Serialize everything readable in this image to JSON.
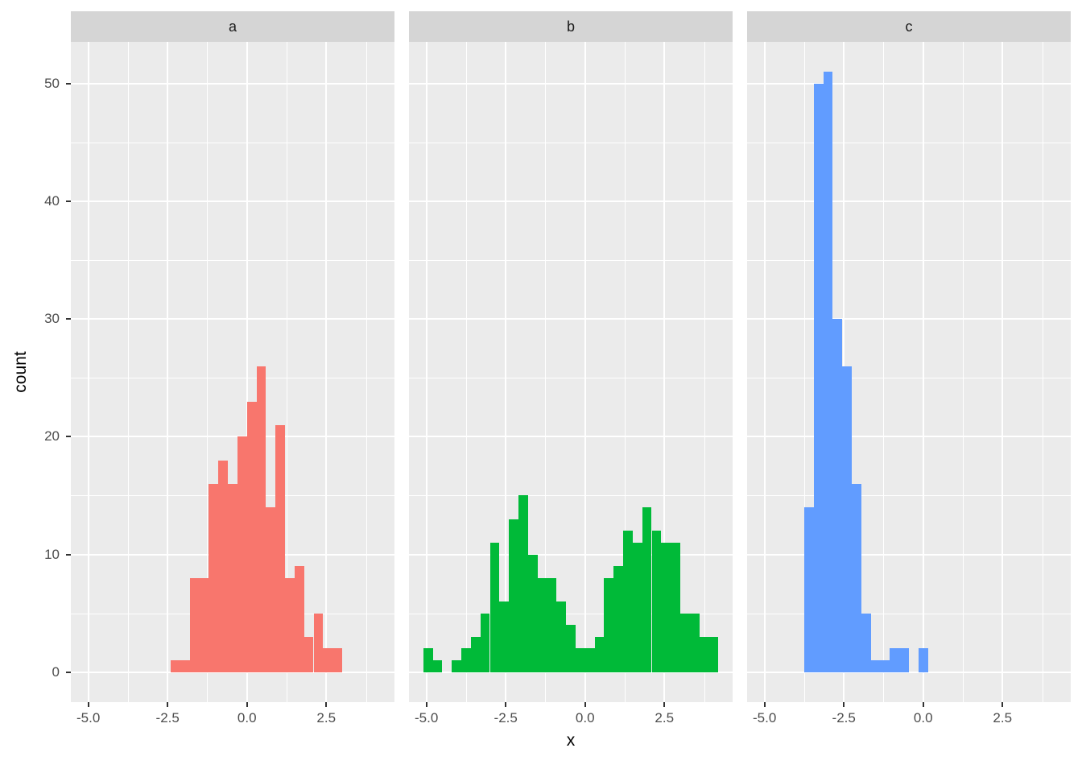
{
  "chart_data": {
    "type": "bar",
    "subtype": "faceted_histogram",
    "title": "",
    "xlabel": "x",
    "ylabel": "count",
    "legend": "none",
    "grid": "on",
    "panel_background": "#EBEBEB",
    "strip_background": "#D5D5D5",
    "grid_color": "#FFFFFF",
    "axis_text_color": "#4D4D4D",
    "tick_color": "#333333",
    "x_domain": [
      -5.55,
      4.65
    ],
    "y_domain": [
      -2.55,
      53.55
    ],
    "x_ticks": [
      -5.0,
      -2.5,
      0.0,
      2.5
    ],
    "x_tick_labels": [
      "-5.0",
      "-2.5",
      "0.0",
      "2.5"
    ],
    "x_minor_ticks": [
      -3.75,
      -1.25,
      1.25,
      3.75
    ],
    "y_ticks": [
      0,
      10,
      20,
      30,
      40,
      50
    ],
    "y_tick_labels": [
      "0",
      "10",
      "20",
      "30",
      "40",
      "50"
    ],
    "y_minor_ticks": [
      5,
      15,
      25,
      35,
      45
    ],
    "bin_width": 0.3,
    "facets": [
      {
        "label": "a",
        "color": "#F8766D",
        "bin_centers": [
          -2.25,
          -1.95,
          -1.65,
          -1.35,
          -1.05,
          -0.75,
          -0.45,
          -0.15,
          0.15,
          0.45,
          0.75,
          1.05,
          1.35,
          1.65,
          1.95,
          2.25,
          2.55,
          2.85
        ],
        "counts": [
          1,
          1,
          8,
          8,
          16,
          18,
          16,
          20,
          23,
          26,
          14,
          21,
          8,
          9,
          3,
          5,
          2,
          2
        ]
      },
      {
        "label": "b",
        "color": "#00BA38",
        "bin_centers": [
          -4.95,
          -4.65,
          -4.35,
          -4.05,
          -3.75,
          -3.45,
          -3.15,
          -2.85,
          -2.55,
          -2.25,
          -1.95,
          -1.65,
          -1.35,
          -1.05,
          -0.75,
          -0.45,
          -0.15,
          0.15,
          0.45,
          0.75,
          1.05,
          1.35,
          1.65,
          1.95,
          2.25,
          2.55,
          2.85,
          3.15,
          3.45,
          3.75,
          4.05
        ],
        "counts": [
          2,
          1,
          0,
          1,
          2,
          3,
          5,
          11,
          6,
          13,
          15,
          10,
          8,
          8,
          6,
          4,
          2,
          2,
          3,
          8,
          9,
          12,
          11,
          14,
          12,
          11,
          11,
          5,
          5,
          3,
          3
        ]
      },
      {
        "label": "c",
        "color": "#619CFF",
        "bin_centers": [
          -3.6,
          -3.3,
          -3.0,
          -2.7,
          -2.4,
          -2.1,
          -1.8,
          -1.5,
          -1.2,
          -0.9,
          -0.6,
          -0.3,
          0.0
        ],
        "counts": [
          14,
          50,
          51,
          30,
          26,
          16,
          5,
          1,
          1,
          2,
          2,
          0,
          2
        ]
      }
    ]
  }
}
